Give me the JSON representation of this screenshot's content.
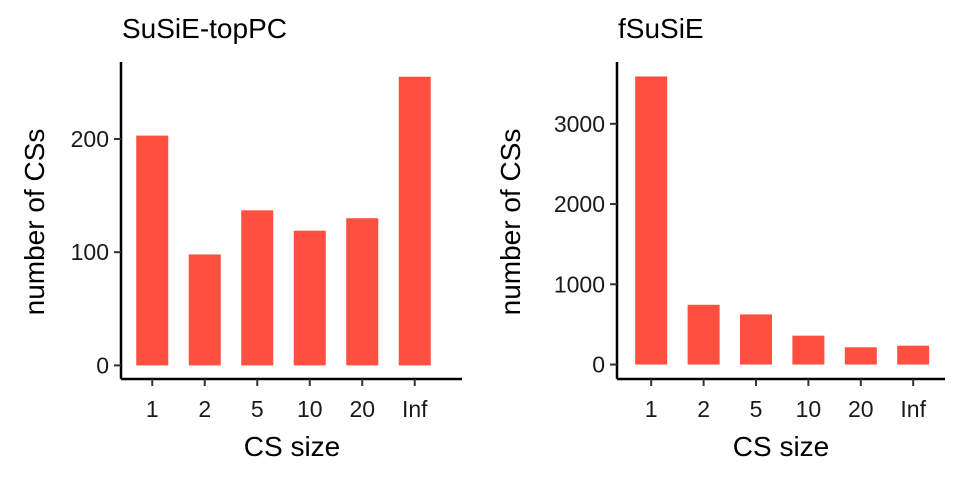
{
  "chart_data": [
    {
      "type": "bar",
      "title": "SuSiE-topPC",
      "xlabel": "CS size",
      "ylabel": "number of CSs",
      "categories": [
        "1",
        "2",
        "5",
        "10",
        "20",
        "Inf"
      ],
      "values": [
        203,
        98,
        137,
        119,
        130,
        255
      ],
      "yticks": [
        0,
        100,
        200
      ],
      "ylim": [
        -12,
        268
      ],
      "bar_color": "#ff4f3f",
      "grid": false,
      "legend": "none"
    },
    {
      "type": "bar",
      "title": "fSuSiE",
      "xlabel": "CS size",
      "ylabel": "number of CSs",
      "categories": [
        "1",
        "2",
        "5",
        "10",
        "20",
        "Inf"
      ],
      "values": [
        3590,
        745,
        625,
        360,
        215,
        235
      ],
      "yticks": [
        0,
        1000,
        2000,
        3000
      ],
      "ylim": [
        -180,
        3770
      ],
      "bar_color": "#ff4f3f",
      "grid": false,
      "legend": "none"
    }
  ]
}
